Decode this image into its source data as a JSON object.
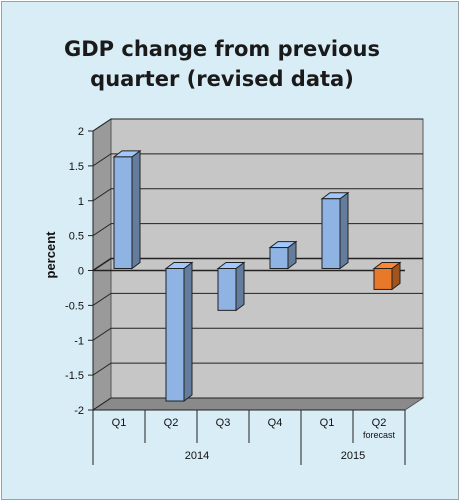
{
  "chart_data": {
    "type": "bar",
    "title_lines": [
      "GDP change from previous",
      "quarter  (revised data)"
    ],
    "ylabel": "percent",
    "ylim": [
      -2,
      2
    ],
    "yticks": [
      2,
      1.5,
      1,
      0.5,
      0,
      -0.5,
      -1,
      -1.5,
      -2
    ],
    "categories": [
      "Q1",
      "Q2",
      "Q3",
      "Q4",
      "Q1",
      "Q2"
    ],
    "category_notes": [
      "",
      "",
      "",
      "",
      "",
      "forecast"
    ],
    "groups": [
      {
        "label": "2014",
        "count": 4
      },
      {
        "label": "2015",
        "count": 2
      }
    ],
    "values": [
      1.6,
      -1.9,
      -0.6,
      0.3,
      1.0,
      -0.3
    ],
    "bar_colors": [
      "#8fb3e3",
      "#8fb3e3",
      "#8fb3e3",
      "#8fb3e3",
      "#8fb3e3",
      "#e8782a"
    ],
    "gridlines": true,
    "style": "3d-bar"
  }
}
